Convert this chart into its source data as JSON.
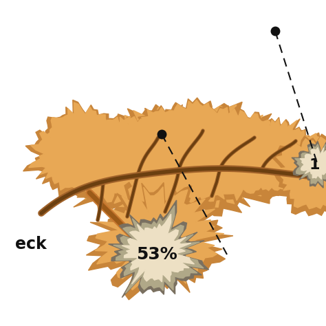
{
  "background_color": "#ffffff",
  "pancreas_color": "#E8A855",
  "pancreas_shadow": "#C8853A",
  "duct_color": "#8B5C1E",
  "duct_color2": "#A0622A",
  "tumor_outer_color": "#B8A080",
  "tumor_inner_color": "#F0E8D0",
  "tumor_border_color": "#888070",
  "label_53": "53%",
  "label_1": "1",
  "label_neck": "eck",
  "dot_color": "#111111",
  "dashed_line_color": "#111111",
  "fig_width": 4.74,
  "fig_height": 4.74,
  "dpi": 100
}
